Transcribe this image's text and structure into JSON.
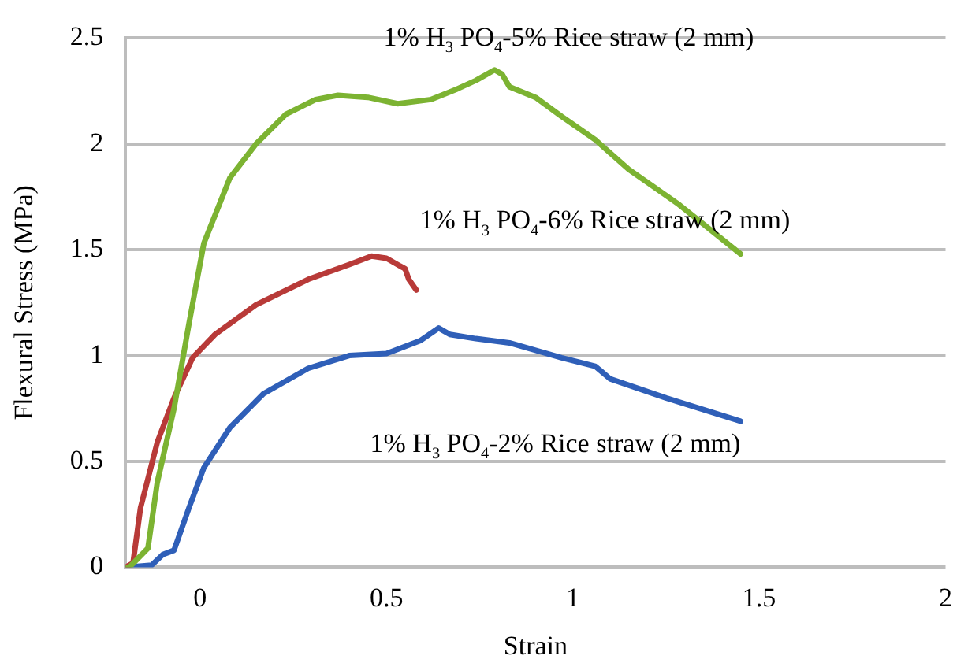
{
  "chart_data": {
    "type": "line",
    "xlabel": "Strain",
    "ylabel": "Flexural Stress (MPa)",
    "xlim": [
      -0.2,
      2
    ],
    "xticks": [
      0,
      0.5,
      1,
      1.5,
      2
    ],
    "ylim": [
      0,
      2.5
    ],
    "yticks": [
      0,
      0.5,
      1,
      1.5,
      2,
      2.5
    ],
    "grid": "y",
    "marker": "none",
    "line_style": "solid",
    "legend": false,
    "series": [
      {
        "name": "1% H$_{3}$ PO$_{4}$-5% Rice straw (2 mm)",
        "color": "#7cb332",
        "x": [
          -0.2,
          -0.19,
          -0.14,
          -0.115,
          -0.07,
          -0.03,
          0.01,
          0.08,
          0.15,
          0.23,
          0.31,
          0.37,
          0.45,
          0.53,
          0.62,
          0.69,
          0.74,
          0.79,
          0.81,
          0.83,
          0.9,
          0.97,
          1.06,
          1.15,
          1.28,
          1.45
        ],
        "values": [
          0,
          0,
          0.09,
          0.4,
          0.75,
          1.15,
          1.53,
          1.84,
          2.0,
          2.14,
          2.21,
          2.23,
          2.22,
          2.19,
          2.21,
          2.26,
          2.3,
          2.35,
          2.33,
          2.27,
          2.22,
          2.13,
          2.02,
          1.88,
          1.72,
          1.48
        ]
      },
      {
        "name": "1% H$_{3}$ PO$_{4}$-6% Rice straw (2 mm)",
        "color": "#b83a38",
        "x": [
          -0.2,
          -0.18,
          -0.16,
          -0.115,
          -0.07,
          -0.02,
          0.04,
          0.15,
          0.29,
          0.4,
          0.46,
          0.5,
          0.55,
          0.56,
          0.58
        ],
        "values": [
          0,
          0.02,
          0.28,
          0.59,
          0.8,
          0.99,
          1.1,
          1.24,
          1.36,
          1.43,
          1.47,
          1.46,
          1.41,
          1.36,
          1.31
        ]
      },
      {
        "name": "1% H$_{3}$ PO$_{4}$-2% Rice straw (2 mm)",
        "color": "#2f5fb8",
        "x": [
          -0.2,
          -0.13,
          -0.1,
          -0.07,
          -0.03,
          0.01,
          0.08,
          0.17,
          0.29,
          0.4,
          0.5,
          0.59,
          0.64,
          0.67,
          0.74,
          0.83,
          0.97,
          1.06,
          1.1,
          1.25,
          1.45
        ],
        "values": [
          0,
          0.01,
          0.06,
          0.08,
          0.28,
          0.47,
          0.66,
          0.82,
          0.94,
          1.0,
          1.01,
          1.07,
          1.13,
          1.1,
          1.08,
          1.06,
          0.99,
          0.95,
          0.89,
          0.8,
          0.69
        ]
      }
    ]
  }
}
